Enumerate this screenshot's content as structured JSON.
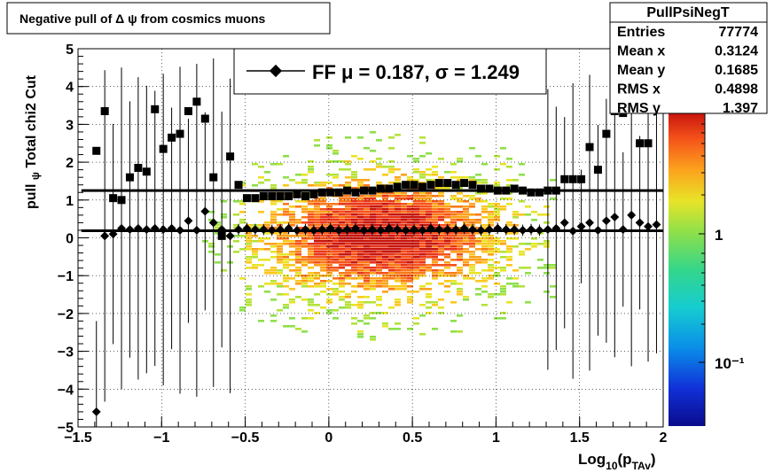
{
  "title": "Negative pull of Δ ψ from cosmics muons",
  "stats": {
    "name": "PullPsiNegT",
    "rows": [
      {
        "label": "Entries",
        "value": "77774"
      },
      {
        "label": "Mean x",
        "value": "0.3124"
      },
      {
        "label": "Mean y",
        "value": "0.1685"
      },
      {
        "label": "RMS x",
        "value": "0.4898"
      },
      {
        "label": "RMS y",
        "value": "1.397"
      }
    ]
  },
  "legend": {
    "text": "FF μ =  0.187, σ =   1.249"
  },
  "chart_data": {
    "type": "scatter",
    "title": "Negative pull of Δ ψ from cosmics muons",
    "xlabel": "Log10(pTAv)",
    "ylabel": "pull ψ   Total chi2 Cut",
    "xlim": [
      -1.5,
      2.0
    ],
    "ylim": [
      -5,
      5
    ],
    "x_ticks": [
      "−1.5",
      "−1",
      "−0.5",
      "0",
      "0.5",
      "1",
      "1.5",
      "2"
    ],
    "y_ticks": [
      "−5",
      "−4",
      "−3",
      "−2",
      "−1",
      "0",
      "1",
      "2",
      "3",
      "4",
      "5"
    ],
    "colorbar_ticks": [
      "10⁻¹",
      "1"
    ],
    "colorbar_scale": "log",
    "grid": true,
    "background_histogram": "2D colz histogram of pull vs log10(pT), densest around x=0 to 0.6, y=-1 to 1",
    "fit_lines": {
      "mu": 0.187,
      "sigma": 1.249
    },
    "series": [
      {
        "name": "FF",
        "marker": "diamond",
        "x": [
          -1.39,
          -1.34,
          -1.29,
          -1.24,
          -1.19,
          -1.14,
          -1.09,
          -1.04,
          -0.99,
          -0.94,
          -0.89,
          -0.84,
          -0.79,
          -0.74,
          -0.69,
          -0.64,
          -0.59,
          -0.54,
          -0.49,
          -0.44,
          -0.39,
          -0.34,
          -0.29,
          -0.24,
          -0.19,
          -0.14,
          -0.09,
          -0.04,
          0.01,
          0.06,
          0.11,
          0.16,
          0.21,
          0.26,
          0.31,
          0.36,
          0.41,
          0.46,
          0.51,
          0.56,
          0.61,
          0.66,
          0.71,
          0.76,
          0.81,
          0.86,
          0.91,
          0.96,
          1.01,
          1.06,
          1.11,
          1.16,
          1.21,
          1.26,
          1.31,
          1.36,
          1.41,
          1.46,
          1.51,
          1.56,
          1.61,
          1.66,
          1.71,
          1.76,
          1.81,
          1.86,
          1.91,
          1.96
        ],
        "y": [
          -4.6,
          0.05,
          0.1,
          0.25,
          0.22,
          0.25,
          0.22,
          0.25,
          0.22,
          0.25,
          0.2,
          0.45,
          0.2,
          0.7,
          0.4,
          0.22,
          0.05,
          0.22,
          0.25,
          0.22,
          0.22,
          0.2,
          0.22,
          0.25,
          0.2,
          0.22,
          0.2,
          0.22,
          0.25,
          0.2,
          0.22,
          0.25,
          0.2,
          0.22,
          0.2,
          0.25,
          0.22,
          0.2,
          0.22,
          0.2,
          0.25,
          0.22,
          0.22,
          0.22,
          0.25,
          0.22,
          0.2,
          0.22,
          0.25,
          0.22,
          0.22,
          0.2,
          0.22,
          0.2,
          0.22,
          0.25,
          0.4,
          0.18,
          0.3,
          0.4,
          0.2,
          0.45,
          0.55,
          0.22,
          0.6,
          0.4,
          0.3,
          0.35
        ]
      },
      {
        "name": "sigma",
        "marker": "square",
        "x": [
          -1.39,
          -1.34,
          -1.29,
          -1.24,
          -1.19,
          -1.14,
          -1.09,
          -1.04,
          -0.99,
          -0.94,
          -0.89,
          -0.84,
          -0.79,
          -0.74,
          -0.69,
          -0.64,
          -0.59,
          -0.54,
          -0.49,
          -0.44,
          -0.39,
          -0.34,
          -0.29,
          -0.24,
          -0.19,
          -0.14,
          -0.09,
          -0.04,
          0.01,
          0.06,
          0.11,
          0.16,
          0.21,
          0.26,
          0.31,
          0.36,
          0.41,
          0.46,
          0.51,
          0.56,
          0.61,
          0.66,
          0.71,
          0.76,
          0.81,
          0.86,
          0.91,
          0.96,
          1.01,
          1.06,
          1.11,
          1.16,
          1.21,
          1.26,
          1.31,
          1.36,
          1.41,
          1.46,
          1.51,
          1.56,
          1.61,
          1.66,
          1.71,
          1.76,
          1.81,
          1.86,
          1.91,
          1.96
        ],
        "y": [
          2.3,
          3.35,
          1.05,
          1.0,
          1.6,
          1.85,
          1.75,
          3.4,
          2.35,
          2.65,
          2.75,
          3.35,
          3.6,
          3.15,
          1.6,
          0.05,
          2.15,
          1.4,
          1.05,
          1.05,
          1.1,
          1.1,
          1.1,
          1.1,
          1.15,
          1.1,
          1.15,
          1.2,
          1.2,
          1.2,
          1.25,
          1.2,
          1.25,
          1.25,
          1.3,
          1.3,
          1.35,
          1.4,
          1.4,
          1.35,
          1.4,
          1.45,
          1.45,
          1.4,
          1.45,
          1.4,
          1.3,
          1.3,
          1.25,
          1.25,
          1.3,
          1.25,
          1.2,
          1.2,
          1.25,
          1.25,
          1.55,
          1.55,
          1.55,
          2.4,
          1.8,
          2.75,
          3.35,
          3.3,
          4.55,
          2.5,
          2.5,
          4.7
        ]
      }
    ]
  }
}
